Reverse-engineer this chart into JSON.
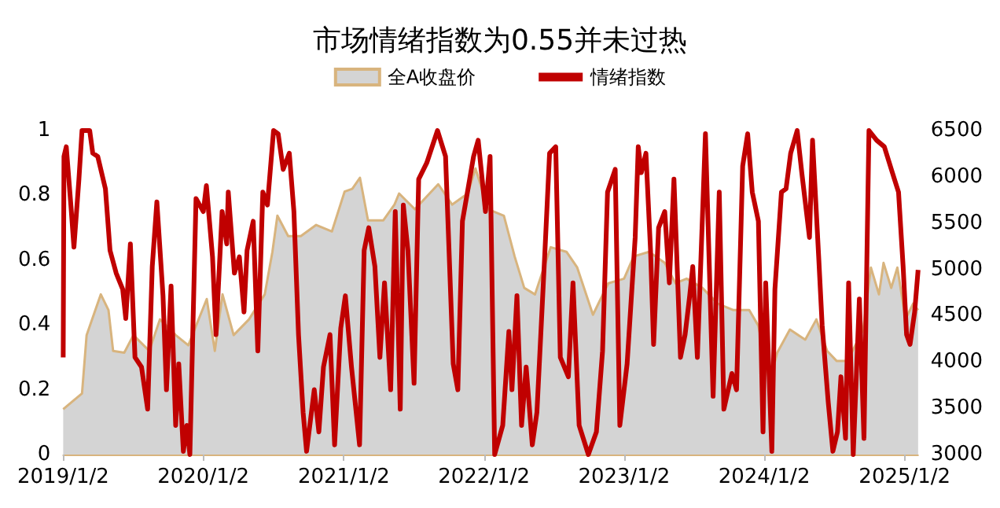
{
  "chart_data": {
    "type": "line",
    "title": "市场情绪指数为0.55并未过热",
    "legend": "top",
    "grid": false,
    "marker": "none",
    "line_style": "solid",
    "xlim": [
      "2019-01-02",
      "2025-02-06"
    ],
    "xticks": [
      {
        "value": "2019-01-02",
        "label": "2019/1/2"
      },
      {
        "value": "2020-01-02",
        "label": "2020/1/2"
      },
      {
        "value": "2021-01-02",
        "label": "2021/1/2"
      },
      {
        "value": "2022-01-02",
        "label": "2022/1/2"
      },
      {
        "value": "2023-01-02",
        "label": "2023/1/2"
      },
      {
        "value": "2024-01-02",
        "label": "2024/1/2"
      },
      {
        "value": "2025-01-02",
        "label": "2025/1/2"
      }
    ],
    "ylim": [
      0,
      1
    ],
    "yticks": [
      0,
      0.2,
      0.4,
      0.6,
      0.8,
      1
    ],
    "y2lim": [
      3000,
      6500
    ],
    "y2ticks": [
      3000,
      3500,
      4000,
      4500,
      5000,
      5500,
      6000,
      6500
    ],
    "series": [
      {
        "name": "全A收盘价",
        "type": "area",
        "axis": "y2",
        "color": "#d8b47e",
        "x": [
          "2019-01-02",
          "2019-02-20",
          "2019-03-04",
          "2019-04-10",
          "2019-04-30",
          "2019-05-12",
          "2019-06-10",
          "2019-07-04",
          "2019-08-14",
          "2019-09-11",
          "2019-10-22",
          "2019-11-24",
          "2019-12-14",
          "2020-01-11",
          "2020-02-01",
          "2020-02-21",
          "2020-03-21",
          "2020-04-30",
          "2020-06-10",
          "2020-06-30",
          "2020-07-13",
          "2020-08-10",
          "2020-09-12",
          "2020-10-22",
          "2020-12-02",
          "2021-01-04",
          "2021-01-24",
          "2021-02-13",
          "2021-03-06",
          "2021-04-15",
          "2021-05-14",
          "2021-05-26",
          "2021-07-06",
          "2021-09-05",
          "2021-10-11",
          "2021-11-21",
          "2021-12-11",
          "2022-01-13",
          "2022-02-23",
          "2022-03-23",
          "2022-04-17",
          "2022-05-15",
          "2022-06-25",
          "2022-08-05",
          "2022-09-02",
          "2022-10-13",
          "2022-11-22",
          "2023-01-02",
          "2023-01-27",
          "2023-03-08",
          "2023-04-18",
          "2023-05-16",
          "2023-06-14",
          "2023-07-25",
          "2023-09-03",
          "2023-10-14",
          "2023-11-24",
          "2023-12-18",
          "2024-01-16",
          "2024-02-05",
          "2024-03-09",
          "2024-04-18",
          "2024-05-17",
          "2024-06-14",
          "2024-07-09",
          "2024-08-06",
          "2024-09-16",
          "2024-10-06",
          "2024-10-27",
          "2024-11-08",
          "2024-11-28",
          "2024-12-14",
          "2025-01-04",
          "2025-01-24",
          "2025-02-06"
        ],
        "values": [
          3490,
          3660,
          4290,
          4730,
          4560,
          4120,
          4100,
          4290,
          4120,
          4460,
          4290,
          4180,
          4390,
          4680,
          4120,
          4730,
          4290,
          4460,
          4730,
          5190,
          5580,
          5360,
          5360,
          5480,
          5410,
          5840,
          5870,
          5990,
          5530,
          5530,
          5700,
          5820,
          5650,
          5920,
          5700,
          5820,
          6090,
          5650,
          5580,
          5140,
          4800,
          4730,
          5240,
          5190,
          5020,
          4510,
          4850,
          4900,
          5140,
          5190,
          5070,
          4850,
          4900,
          4800,
          4630,
          4560,
          4560,
          4390,
          3780,
          4100,
          4350,
          4240,
          4460,
          4120,
          4010,
          4010,
          4350,
          5020,
          4730,
          5070,
          4800,
          5020,
          4460,
          4630,
          4560
        ]
      },
      {
        "name": "情绪指数",
        "color": "#c00000",
        "x": [
          "2019-01-02",
          "2019-01-04",
          "2019-01-10",
          "2019-01-22",
          "2019-01-30",
          "2019-02-12",
          "2019-02-20",
          "2019-03-12",
          "2019-03-20",
          "2019-04-02",
          "2019-04-22",
          "2019-05-04",
          "2019-05-20",
          "2019-06-06",
          "2019-06-14",
          "2019-06-26",
          "2019-07-08",
          "2019-07-25",
          "2019-08-10",
          "2019-08-22",
          "2019-09-03",
          "2019-09-19",
          "2019-09-28",
          "2019-10-10",
          "2019-10-22",
          "2019-10-30",
          "2019-11-11",
          "2019-11-20",
          "2019-11-28",
          "2019-12-14",
          "2020-01-02",
          "2020-01-10",
          "2020-01-26",
          "2020-02-04",
          "2020-02-20",
          "2020-03-03",
          "2020-03-07",
          "2020-03-23",
          "2020-04-05",
          "2020-04-17",
          "2020-04-25",
          "2020-05-11",
          "2020-05-23",
          "2020-06-05",
          "2020-06-17",
          "2020-07-03",
          "2020-07-15",
          "2020-07-28",
          "2020-08-13",
          "2020-08-25",
          "2020-09-06",
          "2020-09-18",
          "2020-09-27",
          "2020-10-17",
          "2020-10-29",
          "2020-11-10",
          "2020-11-27",
          "2020-12-09",
          "2020-12-25",
          "2021-01-06",
          "2021-01-22",
          "2021-02-12",
          "2021-02-24",
          "2021-03-08",
          "2021-03-24",
          "2021-04-06",
          "2021-04-18",
          "2021-05-04",
          "2021-05-16",
          "2021-05-29",
          "2021-06-06",
          "2021-06-18",
          "2021-07-04",
          "2021-07-16",
          "2021-08-06",
          "2021-09-03",
          "2021-09-24",
          "2021-10-14",
          "2021-10-26",
          "2021-11-07",
          "2021-12-06",
          "2021-12-18",
          "2022-01-06",
          "2022-01-18",
          "2022-01-30",
          "2022-02-20",
          "2022-03-08",
          "2022-03-16",
          "2022-03-29",
          "2022-04-10",
          "2022-04-22",
          "2022-05-08",
          "2022-05-20",
          "2022-06-10",
          "2022-06-22",
          "2022-07-08",
          "2022-07-20",
          "2022-08-10",
          "2022-08-22",
          "2022-09-07",
          "2022-10-01",
          "2022-10-22",
          "2022-11-07",
          "2022-11-20",
          "2022-12-10",
          "2022-12-22",
          "2023-01-10",
          "2023-01-31",
          "2023-02-08",
          "2023-02-16",
          "2023-02-28",
          "2023-03-12",
          "2023-03-20",
          "2023-04-02",
          "2023-04-18",
          "2023-04-30",
          "2023-05-12",
          "2023-05-29",
          "2023-06-10",
          "2023-06-22",
          "2023-06-30",
          "2023-07-12",
          "2023-08-02",
          "2023-08-22",
          "2023-09-07",
          "2023-09-19",
          "2023-10-10",
          "2023-10-22",
          "2023-11-07",
          "2023-11-20",
          "2023-12-02",
          "2023-12-18",
          "2023-12-30",
          "2024-01-06",
          "2024-01-22",
          "2024-01-30",
          "2024-02-16",
          "2024-02-28",
          "2024-03-11",
          "2024-03-28",
          "2024-04-09",
          "2024-04-29",
          "2024-05-07",
          "2024-05-23",
          "2024-06-01",
          "2024-06-17",
          "2024-06-29",
          "2024-07-11",
          "2024-07-20",
          "2024-08-01",
          "2024-08-09",
          "2024-08-21",
          "2024-09-06",
          "2024-09-18",
          "2024-10-01",
          "2024-10-21",
          "2024-11-10",
          "2024-12-01",
          "2024-12-17",
          "2024-12-29",
          "2025-01-07",
          "2025-01-16",
          "2025-01-28",
          "2025-02-06"
        ],
        "values": [
          0.3,
          0.92,
          0.95,
          0.77,
          0.64,
          0.85,
          1,
          1,
          0.93,
          0.92,
          0.82,
          0.63,
          0.56,
          0.51,
          0.42,
          0.65,
          0.3,
          0.27,
          0.14,
          0.58,
          0.78,
          0.49,
          0.2,
          0.52,
          0.09,
          0.28,
          0.01,
          0.09,
          0,
          0.79,
          0.75,
          0.83,
          0.61,
          0.37,
          0.75,
          0.65,
          0.81,
          0.56,
          0.61,
          0.44,
          0.63,
          0.72,
          0.32,
          0.81,
          0.77,
          1,
          0.99,
          0.88,
          0.93,
          0.75,
          0.37,
          0.13,
          0.01,
          0.2,
          0.07,
          0.27,
          0.37,
          0.03,
          0.39,
          0.49,
          0.27,
          0.03,
          0.63,
          0.7,
          0.58,
          0.3,
          0.53,
          0.2,
          0.75,
          0.14,
          0.77,
          0.63,
          0.22,
          0.85,
          0.9,
          1,
          0.92,
          0.28,
          0.2,
          0.72,
          0.92,
          0.97,
          0.75,
          0.92,
          0,
          0.09,
          0.38,
          0.2,
          0.49,
          0.09,
          0.27,
          0.03,
          0.13,
          0.63,
          0.93,
          0.95,
          0.3,
          0.24,
          0.53,
          0.09,
          0,
          0.07,
          0.32,
          0.81,
          0.88,
          0.09,
          0.28,
          0.67,
          0.95,
          0.87,
          0.93,
          0.63,
          0.34,
          0.7,
          0.75,
          0.53,
          0.85,
          0.3,
          0.37,
          0.49,
          0.58,
          0.3,
          0.99,
          0.18,
          0.81,
          0.14,
          0.25,
          0.2,
          0.89,
          0.99,
          0.81,
          0.72,
          0.07,
          0.53,
          0.01,
          0.51,
          0.81,
          0.82,
          0.93,
          1,
          0.87,
          0.67,
          0.97,
          0.61,
          0.4,
          0.16,
          0.01,
          0.07,
          0.24,
          0.05,
          0.53,
          0,
          0.48,
          0.05,
          1,
          0.97,
          0.95,
          0.87,
          0.81,
          0.58,
          0.37,
          0.34,
          0.44,
          0.57
        ]
      }
    ]
  }
}
